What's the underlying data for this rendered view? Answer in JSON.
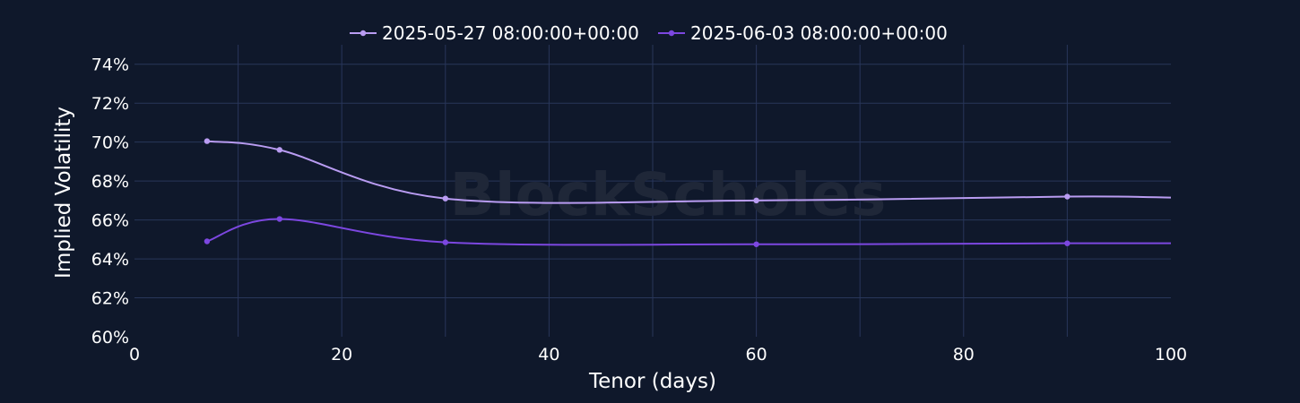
{
  "watermark": "BlockScholes",
  "chart_data": {
    "type": "line",
    "title": "",
    "xlabel": "Tenor (days)",
    "ylabel": "Implied Volatility",
    "xlim": [
      0,
      100
    ],
    "ylim": [
      60,
      75
    ],
    "x_ticks": [
      0,
      20,
      40,
      60,
      80,
      100
    ],
    "y_ticks": [
      60,
      62,
      64,
      66,
      68,
      70,
      72,
      74
    ],
    "y_tick_suffix": "%",
    "grid": true,
    "legend_position": "top-center",
    "series": [
      {
        "name": "2025-05-27 08:00:00+00:00",
        "color": "#b99cf2",
        "x": [
          7,
          14,
          30,
          60,
          90,
          100
        ],
        "y": [
          70.05,
          69.6,
          67.1,
          67.0,
          67.2,
          67.15
        ]
      },
      {
        "name": "2025-06-03 08:00:00+00:00",
        "color": "#7c47e0",
        "x": [
          7,
          14,
          30,
          60,
          90,
          100
        ],
        "y": [
          64.9,
          66.05,
          64.85,
          64.75,
          64.8,
          64.8
        ]
      }
    ]
  }
}
